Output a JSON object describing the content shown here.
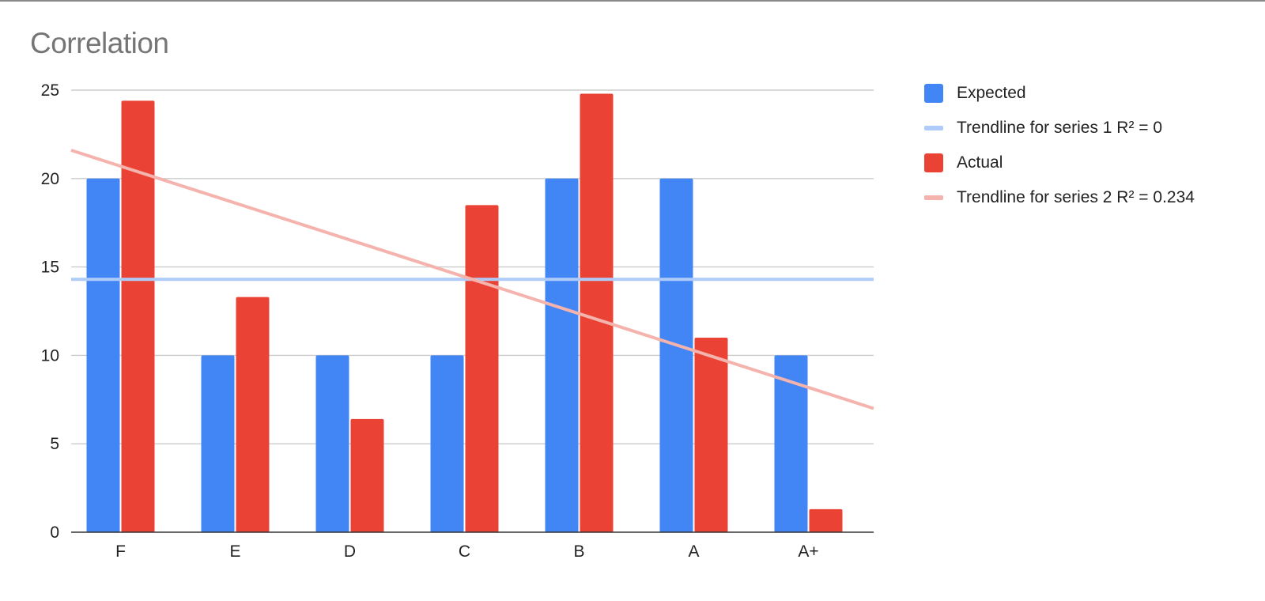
{
  "chart_data": {
    "type": "bar",
    "title": "Correlation",
    "xlabel": "",
    "ylabel": "",
    "categories": [
      "F",
      "E",
      "D",
      "C",
      "B",
      "A",
      "A+"
    ],
    "ylim": [
      0,
      25
    ],
    "yticks": [
      0,
      5,
      10,
      15,
      20,
      25
    ],
    "grid": true,
    "legend_position": "right",
    "series": [
      {
        "name": "Expected",
        "values": [
          20,
          10,
          10,
          10,
          20,
          20,
          10
        ],
        "color": "#4285f4"
      },
      {
        "name": "Actual",
        "values": [
          24.4,
          13.3,
          6.4,
          18.5,
          24.8,
          11,
          1.3
        ],
        "color": "#ea4335"
      }
    ],
    "trendlines": [
      {
        "name": "Trendline for series 1 R² = 0",
        "series": "Expected",
        "start_value": 14.3,
        "end_value": 14.3,
        "color": "#aecbfa"
      },
      {
        "name": "Trendline for series 2 R² = 0.234",
        "series": "Actual",
        "start_value": 21.6,
        "end_value": 7.0,
        "color": "#f4b3ac"
      }
    ],
    "legend": [
      {
        "label": "Expected",
        "kind": "box",
        "color": "#4285f4"
      },
      {
        "label": "Trendline for series 1 R² = 0",
        "kind": "line",
        "color": "#aecbfa"
      },
      {
        "label": "Actual",
        "kind": "box",
        "color": "#ea4335"
      },
      {
        "label": "Trendline for series 2 R² = 0.234",
        "kind": "line",
        "color": "#f4b3ac"
      }
    ]
  }
}
